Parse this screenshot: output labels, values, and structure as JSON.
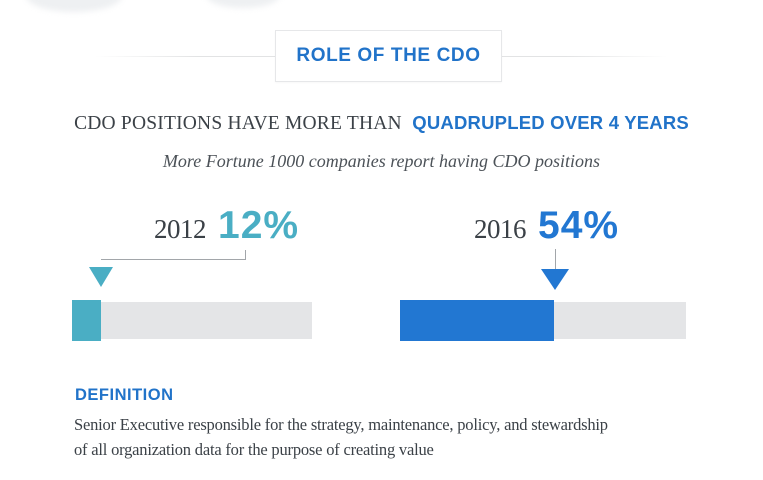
{
  "header": {
    "title": "ROLE OF THE CDO"
  },
  "headline": {
    "plain": "CDO POSITIONS HAVE MORE THAN",
    "highlight": "QUADRUPLED OVER 4 YEARS"
  },
  "subtitle": "More Fortune 1000 companies report having CDO positions",
  "chart_data": {
    "type": "bar",
    "orientation": "horizontal",
    "title": "CDO positions have more than quadrupled over 4 years",
    "subtitle": "More Fortune 1000 companies report having CDO positions",
    "categories": [
      "2012",
      "2016"
    ],
    "values": [
      12,
      54
    ],
    "unit": "%",
    "value_labels": [
      "12%",
      "54%"
    ],
    "xlim": [
      0,
      100
    ],
    "series_colors": [
      "#4aaec4",
      "#2277d2"
    ],
    "track_color": "#e4e5e7",
    "grid": false,
    "legend": false
  },
  "bars": [
    {
      "year": "2012",
      "label": "12%",
      "value": 12
    },
    {
      "year": "2016",
      "label": "54%",
      "value": 54
    }
  ],
  "definition": {
    "heading": "DEFINITION",
    "line1": "Senior Executive responsible for the strategy, maintenance, policy, and stewardship",
    "line2": "of all organization data for the purpose of creating value"
  },
  "colors": {
    "accent_blue": "#2173c9",
    "bar_blue": "#2277d2",
    "teal": "#4aaec4",
    "track_gray": "#e4e5e7",
    "dark_text": "#3b4147",
    "connector_gray": "#a2a6aa"
  }
}
